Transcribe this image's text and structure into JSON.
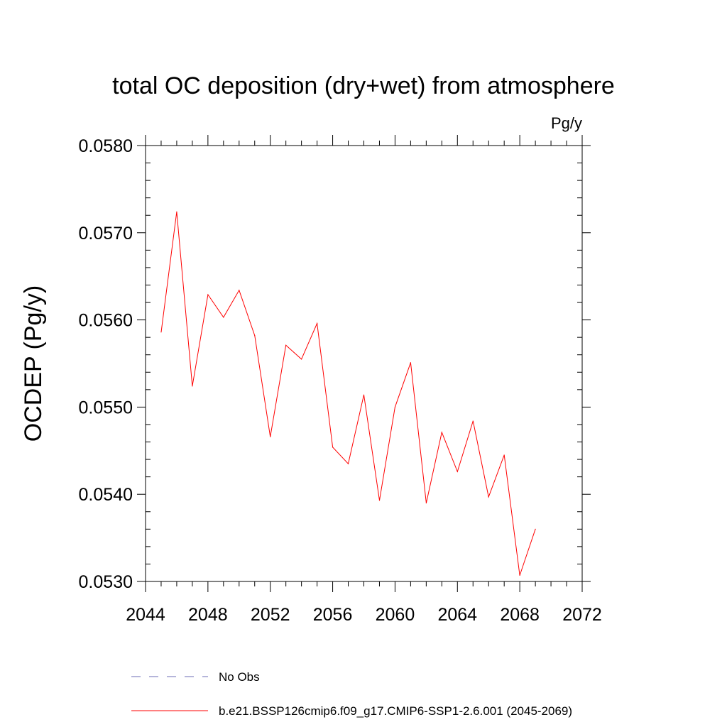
{
  "chart_data": {
    "type": "line",
    "title": "total OC deposition (dry+wet) from atmosphere",
    "units": "Pg/y",
    "ylabel": "OCDEP  (Pg/y)",
    "xlabel": "",
    "xlim": [
      2044,
      2072
    ],
    "ylim": [
      0.053,
      0.058
    ],
    "xticks": [
      2044,
      2048,
      2052,
      2056,
      2060,
      2064,
      2068,
      2072
    ],
    "xtick_labels": [
      "2044",
      "2048",
      "2052",
      "2056",
      "2060",
      "2064",
      "2068",
      "2072"
    ],
    "yticks": [
      0.053,
      0.054,
      0.055,
      0.056,
      0.057,
      0.058
    ],
    "ytick_labels": [
      "0.0530",
      "0.0540",
      "0.0550",
      "0.0560",
      "0.0570",
      "0.0580"
    ],
    "grid": false,
    "series": [
      {
        "name": "b.e21.BSSP126cmip6.f09_g17.CMIP6-SSP1-2.6.001 (2045-2069)",
        "color": "#ff0000",
        "x": [
          2045,
          2046,
          2047,
          2048,
          2049,
          2050,
          2051,
          2052,
          2053,
          2054,
          2055,
          2056,
          2057,
          2058,
          2059,
          2060,
          2061,
          2062,
          2063,
          2064,
          2065,
          2066,
          2067,
          2068,
          2069
        ],
        "values": [
          0.05586,
          0.05724,
          0.05524,
          0.05629,
          0.05603,
          0.05634,
          0.05582,
          0.05466,
          0.05571,
          0.05555,
          0.05596,
          0.05454,
          0.05435,
          0.05514,
          0.05393,
          0.055,
          0.05551,
          0.0539,
          0.05471,
          0.05426,
          0.05484,
          0.05397,
          0.05445,
          0.05307,
          0.0536
        ]
      }
    ],
    "legend": [
      {
        "label": "No Obs",
        "style": "dashed",
        "color": "#6b6bb5"
      },
      {
        "label": "b.e21.BSSP126cmip6.f09_g17.CMIP6-SSP1-2.6.001 (2045-2069)",
        "style": "solid",
        "color": "#ff0000"
      }
    ]
  }
}
